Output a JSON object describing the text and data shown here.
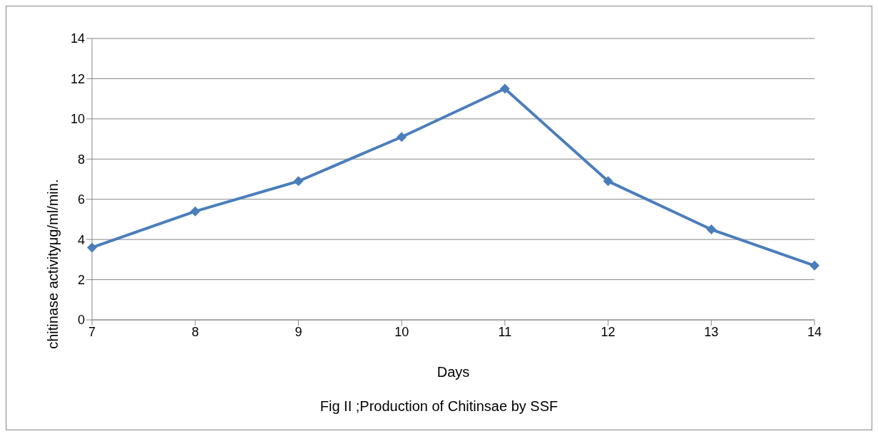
{
  "chart_data": {
    "type": "line",
    "xlabel": "Days",
    "ylabel": "chitinase activityμg/ml/min.",
    "categories": [
      "7",
      "8",
      "9",
      "10",
      "11",
      "12",
      "13",
      "14"
    ],
    "series": [
      {
        "color": "#4a7ebb",
        "values": [
          3.6,
          5.4,
          6.9,
          9.1,
          11.5,
          6.9,
          4.5,
          2.7
        ]
      }
    ],
    "ylim": [
      0,
      14
    ],
    "yticks": [
      0,
      2,
      4,
      6,
      8,
      10,
      12,
      14
    ],
    "grid": "y",
    "marker": "diamond",
    "line_style": "solid",
    "annotations": [
      "Fig II ;Production of Chitinsae by SSF"
    ]
  }
}
